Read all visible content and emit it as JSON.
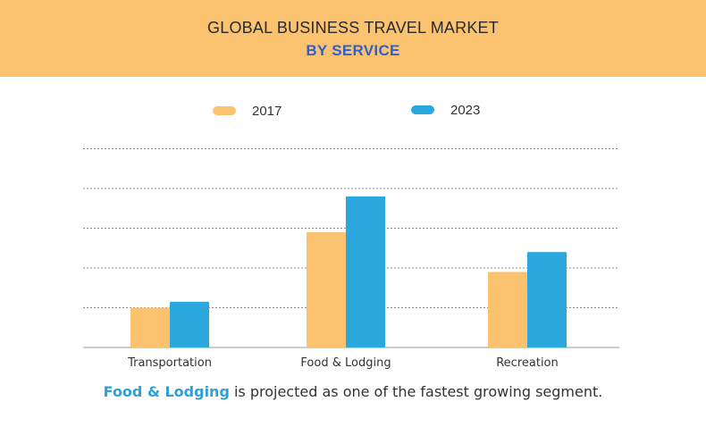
{
  "header": {
    "title": "GLOBAL BUSINESS TRAVEL MARKET",
    "subtitle": "BY SERVICE"
  },
  "colors": {
    "header_bg": "#fbc36f",
    "series_2017": "#fbc36f",
    "series_2023": "#2aa7dd",
    "subtitle": "#2f5fd0",
    "caption_highlight": "#2f9fd8"
  },
  "chart_data": {
    "type": "bar",
    "categories": [
      "Transportation",
      "Food & Lodging",
      "Recreation"
    ],
    "series": [
      {
        "name": "2017",
        "values": [
          1.0,
          2.9,
          1.9
        ]
      },
      {
        "name": "2023",
        "values": [
          1.15,
          3.8,
          2.4
        ]
      }
    ],
    "ylim": [
      0,
      5
    ],
    "grid": true,
    "legend_position": "top-center",
    "y_tick_labels_shown": false
  },
  "caption": {
    "highlight": "Food & Lodging",
    "rest": " is projected as one of the fastest growing segment."
  }
}
